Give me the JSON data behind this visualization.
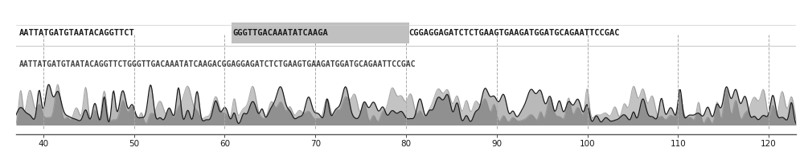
{
  "seq_line1_before_highlight": "AATTATGATGTAATACAGGTTCT",
  "seq_line1_highlight": "GGGTTGACAAATATCAAGA",
  "seq_line1_after_highlight": "CGGAGGAGATCTCTGAAGTGAAGATGGATGCAGAATTCCGAC",
  "seq_line2": "AATTATGATGTAATACAGGTTCTGGGTTGACAAATATCAAGACGGAGGAGATCTCTGAAGTGAAGATGGATGCAGAATTCCGAC",
  "x_ticks": [
    40,
    50,
    60,
    70,
    80,
    90,
    100,
    110,
    120
  ],
  "x_range": [
    37,
    123
  ],
  "highlight_color": "#c0c0c0",
  "background_color": "#ffffff",
  "text_color": "#1a1a1a",
  "line1_fontsize": 7.5,
  "line2_fontsize": 7.0,
  "dashed_line_color": "#aaaaaa",
  "chromatogram_dark_color": "#1a1a1a",
  "chromatogram_light_color": "#888888"
}
